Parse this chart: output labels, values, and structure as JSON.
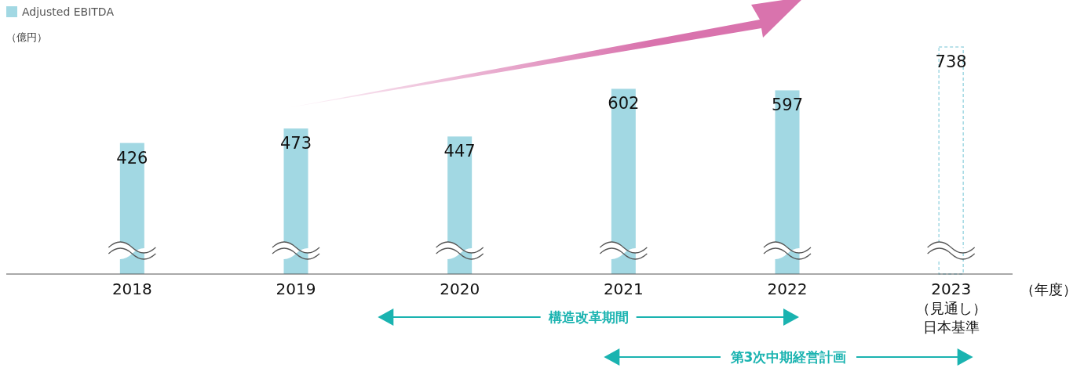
{
  "chart_data": {
    "type": "bar",
    "categories": [
      "2018",
      "2019",
      "2020",
      "2021",
      "2022",
      "2023\n（見通し）日本基準"
    ],
    "series": [
      {
        "name": "Adjusted EBITDA",
        "color": "#a2d8e3",
        "values": [
          426,
          473,
          447,
          602,
          597,
          null
        ]
      },
      {
        "color": "#a2d8e3",
        "line_style": "dashed",
        "values": [
          null,
          null,
          null,
          null,
          null,
          738
        ]
      }
    ],
    "ylabel": "（億円）",
    "xlabel": "（年度）",
    "data_labels": true,
    "legend": "top left",
    "annotations": [
      "構造改革期間",
      "第3次中期経営計画"
    ]
  }
}
